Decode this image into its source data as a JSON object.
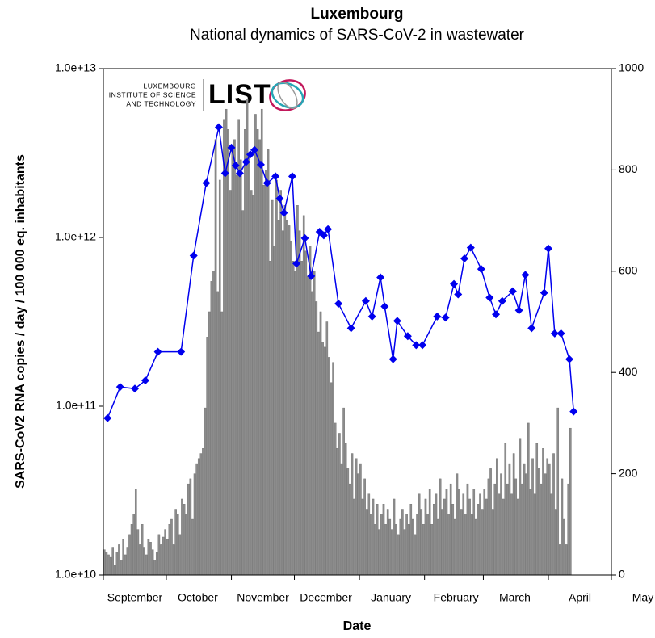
{
  "logo": {
    "lines": [
      "LUXEMBOURG",
      "INSTITUTE OF SCIENCE",
      "AND TECHNOLOGY"
    ],
    "name": "LIST"
  },
  "chart_data": {
    "type": "bar-line",
    "title": "Luxembourg",
    "subtitle": "National dynamics of SARS-CoV-2 in wastewater",
    "x_label": "Date",
    "y_label": "SARS-CoV2 RNA copies / day  / 100 000 eq. inhabitants",
    "xlim": [
      0,
      242
    ],
    "xticks": [
      {
        "value": 0,
        "label": "September"
      },
      {
        "value": 30,
        "label": "October"
      },
      {
        "value": 61,
        "label": "November"
      },
      {
        "value": 91,
        "label": "December"
      },
      {
        "value": 122,
        "label": "January"
      },
      {
        "value": 153,
        "label": "February"
      },
      {
        "value": 181,
        "label": "March"
      },
      {
        "value": 212,
        "label": "April"
      },
      {
        "value": 242,
        "label": "May"
      }
    ],
    "ylim": [
      10000000000.0,
      10000000000000.0
    ],
    "log_y": true,
    "yticks": [
      {
        "value": 10000000000.0,
        "label": "1.0e+10"
      },
      {
        "value": 100000000000.0,
        "label": "1.0e+11"
      },
      {
        "value": 1000000000000.0,
        "label": "1.0e+12"
      },
      {
        "value": 10000000000000.0,
        "label": "1.0e+13"
      }
    ],
    "y2lim": [
      0,
      1000
    ],
    "y2ticks": [
      0,
      200,
      400,
      600,
      800,
      1000
    ],
    "series": [
      {
        "type": "bar",
        "axis": "y2",
        "color": "#8c8c8c",
        "x": [
          0,
          1,
          2,
          3,
          4,
          5,
          6,
          7,
          8,
          9,
          10,
          11,
          12,
          13,
          14,
          15,
          16,
          17,
          18,
          19,
          20,
          21,
          22,
          23,
          24,
          25,
          26,
          27,
          28,
          29,
          30,
          31,
          32,
          33,
          34,
          35,
          36,
          37,
          38,
          39,
          40,
          41,
          42,
          43,
          44,
          45,
          46,
          47,
          48,
          49,
          50,
          51,
          52,
          53,
          54,
          55,
          56,
          57,
          58,
          59,
          60,
          61,
          62,
          63,
          64,
          65,
          66,
          67,
          68,
          69,
          70,
          71,
          72,
          73,
          74,
          75,
          76,
          77,
          78,
          79,
          80,
          81,
          82,
          83,
          84,
          85,
          86,
          87,
          88,
          89,
          90,
          91,
          92,
          93,
          94,
          95,
          96,
          97,
          98,
          99,
          100,
          101,
          102,
          103,
          104,
          105,
          106,
          107,
          108,
          109,
          110,
          111,
          112,
          113,
          114,
          115,
          116,
          117,
          118,
          119,
          120,
          121,
          122,
          123,
          124,
          125,
          126,
          127,
          128,
          129,
          130,
          131,
          132,
          133,
          134,
          135,
          136,
          137,
          138,
          139,
          140,
          141,
          142,
          143,
          144,
          145,
          146,
          147,
          148,
          149,
          150,
          151,
          152,
          153,
          154,
          155,
          156,
          157,
          158,
          159,
          160,
          161,
          162,
          163,
          164,
          165,
          166,
          167,
          168,
          169,
          170,
          171,
          172,
          173,
          174,
          175,
          176,
          177,
          178,
          179,
          180,
          181,
          182,
          183,
          184,
          185,
          186,
          187,
          188,
          189,
          190,
          191,
          192,
          193,
          194,
          195,
          196,
          197,
          198,
          199,
          200,
          201,
          202,
          203,
          204,
          205,
          206,
          207,
          208,
          209,
          210,
          211,
          212,
          213,
          214,
          215,
          216,
          217,
          218,
          219,
          220,
          221,
          222
        ],
        "values": [
          50,
          45,
          40,
          35,
          55,
          20,
          45,
          60,
          30,
          70,
          40,
          55,
          80,
          100,
          120,
          170,
          90,
          60,
          100,
          55,
          40,
          70,
          65,
          50,
          30,
          45,
          80,
          60,
          75,
          90,
          70,
          100,
          110,
          60,
          130,
          120,
          80,
          150,
          140,
          120,
          180,
          190,
          110,
          200,
          220,
          230,
          240,
          250,
          330,
          470,
          520,
          580,
          600,
          860,
          560,
          780,
          520,
          900,
          920,
          880,
          760,
          840,
          860,
          790,
          900,
          820,
          720,
          880,
          940,
          830,
          760,
          750,
          910,
          880,
          860,
          920,
          770,
          800,
          840,
          620,
          740,
          650,
          780,
          700,
          760,
          680,
          730,
          700,
          690,
          660,
          620,
          600,
          730,
          680,
          620,
          710,
          640,
          590,
          650,
          560,
          600,
          540,
          480,
          520,
          460,
          450,
          500,
          430,
          380,
          420,
          300,
          250,
          280,
          220,
          330,
          260,
          210,
          180,
          240,
          150,
          230,
          200,
          220,
          150,
          190,
          130,
          160,
          120,
          150,
          100,
          140,
          90,
          120,
          140,
          100,
          130,
          110,
          90,
          150,
          100,
          80,
          110,
          130,
          90,
          120,
          100,
          140,
          110,
          80,
          120,
          160,
          130,
          100,
          150,
          120,
          170,
          100,
          140,
          160,
          110,
          190,
          130,
          150,
          170,
          120,
          180,
          140,
          110,
          200,
          170,
          130,
          160,
          120,
          180,
          150,
          120,
          170,
          110,
          140,
          160,
          130,
          170,
          150,
          190,
          210,
          130,
          180,
          230,
          160,
          200,
          150,
          260,
          180,
          220,
          160,
          240,
          190,
          150,
          270,
          180,
          220,
          200,
          300,
          170,
          230,
          160,
          260,
          210,
          180,
          250,
          200,
          230,
          220,
          160,
          240,
          130,
          330,
          60,
          190,
          110,
          60,
          180,
          290
        ]
      },
      {
        "type": "line",
        "axis": "y",
        "color": "#0000ee",
        "x": [
          2,
          8,
          15,
          20,
          26,
          37,
          43,
          49,
          55,
          58,
          61,
          63,
          65,
          68,
          70,
          72,
          75,
          78,
          82,
          84,
          86,
          90,
          92,
          96,
          99,
          103,
          105,
          107,
          112,
          118,
          125,
          128,
          132,
          134,
          138,
          140,
          145,
          149,
          152,
          159,
          163,
          167,
          169,
          172,
          175,
          180,
          184,
          187,
          190,
          195,
          198,
          201,
          204,
          210,
          212,
          215,
          218,
          222,
          224
        ],
        "values": [
          85000000000.0,
          130000000000.0,
          127000000000.0,
          142000000000.0,
          210000000000.0,
          210000000000.0,
          780000000000.0,
          2100000000000.0,
          4500000000000.0,
          2400000000000.0,
          3400000000000.0,
          2670000000000.0,
          2400000000000.0,
          2800000000000.0,
          3100000000000.0,
          3300000000000.0,
          2700000000000.0,
          2100000000000.0,
          2300000000000.0,
          1700000000000.0,
          1400000000000.0,
          2300000000000.0,
          700000000000.0,
          990000000000.0,
          590000000000.0,
          1080000000000.0,
          1030000000000.0,
          1120000000000.0,
          405000000000.0,
          290000000000.0,
          420000000000.0,
          340000000000.0,
          580000000000.0,
          390000000000.0,
          190000000000.0,
          320000000000.0,
          260000000000.0,
          230000000000.0,
          230000000000.0,
          340000000000.0,
          335000000000.0,
          530000000000.0,
          460000000000.0,
          750000000000.0,
          870000000000.0,
          650000000000.0,
          440000000000.0,
          350000000000.0,
          420000000000.0,
          480000000000.0,
          370000000000.0,
          600000000000.0,
          290000000000.0,
          470000000000.0,
          860000000000.0,
          270000000000.0,
          270000000000.0,
          190000000000.0,
          93000000000.0
        ]
      }
    ]
  }
}
